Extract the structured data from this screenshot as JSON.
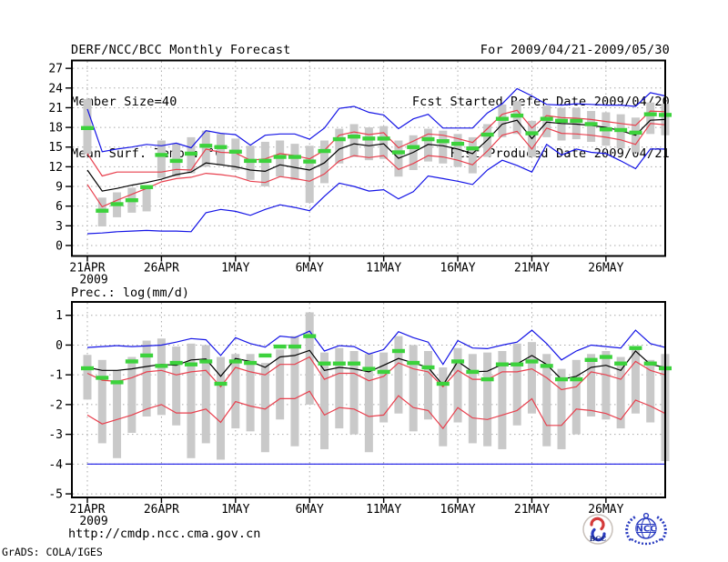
{
  "header": {
    "title": "DERF/NCC/BCC Monthly Forecast",
    "member_size": "Member Size=40",
    "temp_label": "Mean Surf. Temp.: °C",
    "for_range": "For 2009/04/21-2009/05/30",
    "refer_date": "Fcst Started Refer Date 2009/04/20",
    "produced_date": "Fcst Produced Date 2009/04/21"
  },
  "footer": {
    "url": "http://cmdp.ncc.cma.gov.cn",
    "credit": "GrADS: COLA/IGES",
    "bcc_logo_text": "BCC",
    "ncc_logo_text": "NCC"
  },
  "colors": {
    "extreme": "#1414e6",
    "quartile": "#e8404e",
    "mean": "#000000",
    "median": "#3cd23c",
    "bar": "#c9c9c9",
    "grid": "#a9a9a9",
    "frame": "#000000"
  },
  "chart_data": [
    {
      "type": "line",
      "title": "Mean Surf. Temp.: °C",
      "draw_title": false,
      "xlabel": "",
      "ylabel": "°C",
      "n_points": 40,
      "x_start_date": "21APR2009",
      "x_tick_days": [
        1,
        6,
        11,
        16,
        21,
        26,
        31,
        36
      ],
      "x_tick_labels": [
        "21APR",
        "26APR",
        "1MAY",
        "6MAY",
        "11MAY",
        "16MAY",
        "21MAY",
        "26MAY"
      ],
      "x_year_label": "2009",
      "ylim": [
        -1.6,
        28.2
      ],
      "yticks": [
        0,
        3,
        6,
        9,
        12,
        15,
        18,
        21,
        24,
        27
      ],
      "grid": true,
      "legend": "none",
      "series": [
        {
          "name": "ensemble-max",
          "style": "line",
          "color_key": "extreme",
          "values": [
            20.8,
            14.3,
            14.7,
            15.0,
            15.4,
            15.2,
            15.6,
            14.9,
            17.5,
            17.1,
            16.9,
            15.3,
            16.8,
            17.0,
            17.0,
            16.2,
            17.9,
            20.9,
            21.2,
            20.3,
            19.9,
            17.8,
            19.3,
            20.0,
            17.9,
            17.9,
            17.9,
            20.2,
            21.6,
            23.9,
            22.8,
            21.5,
            21.4,
            21.6,
            21.5,
            21.4,
            21.4,
            21.2,
            23.3,
            22.8
          ]
        },
        {
          "name": "ensemble-min",
          "style": "line",
          "color_key": "extreme",
          "values": [
            1.8,
            1.9,
            2.1,
            2.2,
            2.3,
            2.2,
            2.2,
            2.1,
            5.0,
            5.5,
            5.2,
            4.6,
            5.5,
            6.2,
            5.8,
            5.3,
            7.5,
            9.5,
            9.0,
            8.3,
            8.5,
            7.1,
            8.2,
            10.6,
            10.2,
            9.8,
            9.3,
            11.5,
            13.0,
            12.2,
            11.2,
            15.4,
            13.8,
            14.7,
            14.2,
            14.0,
            12.9,
            11.7,
            14.7,
            14.7
          ]
        },
        {
          "name": "upper-spread",
          "style": "line",
          "color_key": "quartile",
          "values": [
            14.0,
            10.6,
            11.2,
            11.2,
            11.2,
            11.2,
            11.6,
            11.5,
            14.7,
            14.2,
            14.1,
            13.0,
            13.2,
            14.0,
            13.7,
            13.2,
            14.5,
            16.8,
            17.3,
            16.9,
            17.2,
            14.9,
            15.9,
            17.0,
            16.8,
            16.3,
            15.7,
            17.8,
            20.0,
            20.6,
            17.9,
            19.8,
            19.5,
            19.4,
            19.2,
            18.9,
            18.6,
            18.3,
            20.5,
            20.4
          ]
        },
        {
          "name": "lower-spread",
          "style": "line",
          "color_key": "quartile",
          "values": [
            9.3,
            5.9,
            6.9,
            7.8,
            8.7,
            9.7,
            10.2,
            10.4,
            11.0,
            10.8,
            10.5,
            9.8,
            9.6,
            10.5,
            10.2,
            9.8,
            10.9,
            12.9,
            13.7,
            13.4,
            13.7,
            11.6,
            12.5,
            13.7,
            13.5,
            13.0,
            12.3,
            14.4,
            16.8,
            17.4,
            14.7,
            17.9,
            17.1,
            17.0,
            16.8,
            16.5,
            16.1,
            15.4,
            18.6,
            18.4
          ]
        },
        {
          "name": "ensemble-mean",
          "style": "line",
          "color_key": "mean",
          "values": [
            11.5,
            8.3,
            8.7,
            9.2,
            9.6,
            10.1,
            10.8,
            11.2,
            12.6,
            12.3,
            12.0,
            11.5,
            11.3,
            12.3,
            11.9,
            11.5,
            12.6,
            14.7,
            15.5,
            15.2,
            15.5,
            13.3,
            14.2,
            15.4,
            15.2,
            14.7,
            14.0,
            16.1,
            18.5,
            19.1,
            16.3,
            18.8,
            18.6,
            18.5,
            18.3,
            18.0,
            17.5,
            16.8,
            19.1,
            19.2
          ]
        },
        {
          "name": "ensemble-median",
          "style": "dash",
          "color_key": "median",
          "values": [
            17.9,
            5.3,
            6.3,
            6.9,
            8.9,
            13.8,
            12.9,
            14.0,
            15.2,
            15.0,
            14.3,
            12.9,
            12.9,
            13.5,
            13.5,
            12.8,
            14.4,
            16.2,
            16.6,
            16.3,
            16.3,
            14.2,
            15.0,
            16.2,
            15.9,
            15.5,
            14.8,
            16.9,
            19.3,
            19.8,
            17.1,
            19.3,
            19.0,
            19.0,
            18.5,
            17.7,
            17.6,
            17.2,
            20.0,
            19.9
          ]
        },
        {
          "name": "spread-bar",
          "style": "bar",
          "color_key": "bar",
          "low": [
            14.0,
            2.9,
            4.3,
            5.0,
            5.2,
            10.3,
            10.5,
            11.0,
            12.0,
            12.2,
            11.5,
            10.0,
            9.0,
            10.5,
            10.0,
            6.5,
            9.5,
            12.5,
            13.5,
            13.0,
            13.2,
            10.5,
            11.5,
            12.8,
            12.5,
            12.0,
            11.0,
            13.5,
            16.5,
            17.0,
            13.5,
            16.5,
            16.0,
            16.2,
            15.8,
            15.2,
            14.8,
            14.2,
            17.0,
            16.8
          ],
          "high": [
            22.3,
            7.3,
            8.1,
            8.8,
            9.0,
            16.0,
            15.5,
            16.5,
            17.5,
            17.0,
            16.3,
            15.2,
            15.8,
            16.0,
            15.5,
            15.2,
            16.0,
            17.8,
            18.5,
            18.0,
            18.2,
            16.0,
            16.8,
            17.8,
            17.5,
            17.0,
            16.5,
            18.5,
            21.5,
            22.0,
            19.0,
            21.3,
            21.0,
            21.0,
            20.5,
            20.3,
            20.0,
            19.5,
            21.8,
            21.6
          ]
        }
      ]
    },
    {
      "type": "line",
      "title": "Prec.: log(mm/d)",
      "draw_title": true,
      "xlabel": "",
      "ylabel": "log(mm/d)",
      "n_points": 40,
      "x_start_date": "21APR2009",
      "x_tick_days": [
        1,
        6,
        11,
        16,
        21,
        26,
        31,
        36
      ],
      "x_tick_labels": [
        "21APR",
        "26APR",
        "1MAY",
        "6MAY",
        "11MAY",
        "16MAY",
        "21MAY",
        "26MAY"
      ],
      "x_year_label": "2009",
      "ylim": [
        -5.12,
        1.45
      ],
      "yticks": [
        -5,
        -4,
        -3,
        -2,
        -1,
        0,
        1
      ],
      "grid": true,
      "legend": "none",
      "series": [
        {
          "name": "ensemble-max",
          "style": "line",
          "color_key": "extreme",
          "values": [
            -0.08,
            -0.05,
            -0.02,
            -0.05,
            -0.03,
            0.0,
            0.1,
            0.22,
            0.18,
            -0.35,
            0.25,
            0.05,
            -0.07,
            0.3,
            0.25,
            0.47,
            -0.2,
            -0.02,
            -0.05,
            -0.3,
            -0.15,
            0.45,
            0.25,
            0.1,
            -0.65,
            0.15,
            -0.1,
            -0.12,
            0.0,
            0.1,
            0.5,
            0.05,
            -0.5,
            -0.2,
            0.0,
            -0.05,
            -0.1,
            0.5,
            0.05,
            -0.08
          ]
        },
        {
          "name": "ensemble-min",
          "style": "line",
          "color_key": "extreme",
          "values": [
            -4.0,
            -4.0,
            -4.0,
            -4.0,
            -4.0,
            -4.0,
            -4.0,
            -4.0,
            -4.0,
            -4.0,
            -4.0,
            -4.0,
            -4.0,
            -4.0,
            -4.0,
            -4.0,
            -4.0,
            -4.0,
            -4.0,
            -4.0,
            -4.0,
            -4.0,
            -4.0,
            -4.0,
            -4.0,
            -4.0,
            -4.0,
            -4.0,
            -4.0,
            -4.0,
            -4.0,
            -4.0,
            -4.0,
            -4.0,
            -4.0,
            -4.0,
            -4.0,
            -4.0,
            -4.0,
            -4.0
          ]
        },
        {
          "name": "upper-spread",
          "style": "line",
          "color_key": "quartile",
          "values": [
            -0.95,
            -1.18,
            -1.22,
            -1.1,
            -0.9,
            -0.85,
            -1.0,
            -0.9,
            -0.85,
            -1.4,
            -0.75,
            -0.9,
            -1.0,
            -0.65,
            -0.65,
            -0.4,
            -1.15,
            -0.95,
            -0.95,
            -1.2,
            -1.05,
            -0.6,
            -0.8,
            -0.9,
            -1.4,
            -0.85,
            -1.15,
            -1.15,
            -0.9,
            -0.9,
            -0.8,
            -1.1,
            -1.5,
            -1.4,
            -0.9,
            -1.0,
            -1.15,
            -0.55,
            -0.85,
            -1.0
          ]
        },
        {
          "name": "lower-spread",
          "style": "line",
          "color_key": "quartile",
          "values": [
            -2.35,
            -2.65,
            -2.5,
            -2.35,
            -2.15,
            -2.0,
            -2.28,
            -2.28,
            -2.15,
            -2.6,
            -1.9,
            -2.05,
            -2.15,
            -1.8,
            -1.8,
            -1.55,
            -2.35,
            -2.1,
            -2.15,
            -2.4,
            -2.35,
            -1.7,
            -2.1,
            -2.2,
            -2.8,
            -2.1,
            -2.45,
            -2.5,
            -2.35,
            -2.2,
            -1.8,
            -2.7,
            -2.7,
            -2.15,
            -2.2,
            -2.3,
            -2.5,
            -1.85,
            -2.05,
            -2.3
          ]
        },
        {
          "name": "ensemble-mean",
          "style": "line",
          "color_key": "mean",
          "values": [
            -0.75,
            -0.85,
            -0.85,
            -0.8,
            -0.72,
            -0.65,
            -0.68,
            -0.5,
            -0.47,
            -1.05,
            -0.45,
            -0.55,
            -0.75,
            -0.4,
            -0.35,
            -0.18,
            -0.85,
            -0.75,
            -0.8,
            -0.9,
            -0.68,
            -0.45,
            -0.6,
            -0.75,
            -1.35,
            -0.55,
            -0.9,
            -0.88,
            -0.65,
            -0.63,
            -0.35,
            -0.65,
            -1.15,
            -1.05,
            -0.75,
            -0.68,
            -0.85,
            -0.2,
            -0.65,
            -0.75
          ]
        },
        {
          "name": "ensemble-median",
          "style": "dash",
          "color_key": "median",
          "values": [
            -0.78,
            -1.1,
            -1.25,
            -0.55,
            -0.35,
            -0.7,
            -0.6,
            -0.65,
            -0.55,
            -1.3,
            -0.55,
            -0.6,
            -0.35,
            -0.05,
            -0.05,
            0.3,
            -0.62,
            -0.62,
            -0.62,
            -0.8,
            -0.9,
            -0.2,
            -0.6,
            -0.75,
            -1.3,
            -0.55,
            -0.9,
            -1.15,
            -0.65,
            -0.65,
            -0.55,
            -0.7,
            -1.15,
            -1.15,
            -0.5,
            -0.4,
            -0.62,
            -0.1,
            -0.62,
            -0.78
          ]
        },
        {
          "name": "spread-bar",
          "style": "bar",
          "color_key": "bar",
          "low": [
            -1.83,
            -3.3,
            -3.8,
            -2.95,
            -2.4,
            -2.35,
            -2.7,
            -3.8,
            -3.3,
            -3.85,
            -2.8,
            -2.9,
            -3.6,
            -2.5,
            -3.4,
            -2.0,
            -3.5,
            -2.8,
            -3.0,
            -3.6,
            -2.6,
            -2.3,
            -2.9,
            -2.5,
            -3.4,
            -2.6,
            -3.3,
            -3.4,
            -3.5,
            -2.7,
            -2.3,
            -3.4,
            -3.5,
            -3.0,
            -2.4,
            -2.5,
            -2.8,
            -2.3,
            -2.6,
            -3.9
          ],
          "high": [
            -0.33,
            -0.5,
            -0.85,
            -0.4,
            0.15,
            0.22,
            -0.05,
            0.05,
            0.0,
            -0.4,
            -0.3,
            -0.3,
            -0.6,
            -0.15,
            0.3,
            1.1,
            -0.25,
            -0.1,
            -0.2,
            -0.3,
            -0.25,
            0.3,
            0.0,
            -0.2,
            -0.75,
            -0.1,
            -0.3,
            -0.25,
            -0.2,
            0.05,
            0.1,
            -0.3,
            -0.8,
            -0.5,
            -0.3,
            -0.2,
            -0.4,
            -0.15,
            -0.5,
            -0.3
          ]
        }
      ]
    }
  ]
}
